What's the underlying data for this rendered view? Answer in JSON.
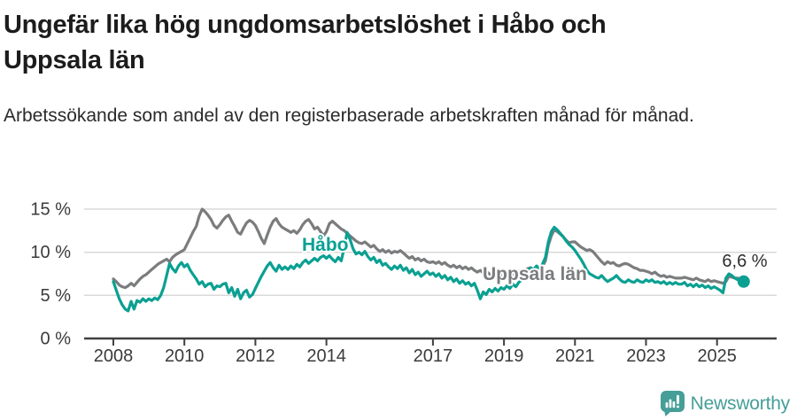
{
  "header": {
    "title": "Ungefär lika hög ungdomsarbetslöshet i Håbo och Uppsala län",
    "subtitle": "Arbetssökande som andel av den registerbaserade arbetskraften månad för månad."
  },
  "chart_data": {
    "type": "line",
    "x_unit": "month",
    "x_start": "2008-01",
    "x_end": "2025-10",
    "x_ticks": [
      2008,
      2010,
      2012,
      2014,
      2017,
      2019,
      2021,
      2023,
      2025
    ],
    "y_ticks": [
      {
        "value": 0,
        "label": "0 %"
      },
      {
        "value": 5,
        "label": "5 %"
      },
      {
        "value": 10,
        "label": "10 %"
      },
      {
        "value": 15,
        "label": "15 %"
      }
    ],
    "ylim": [
      0,
      15.5
    ],
    "grid": "horizontal",
    "legend_position": "inline-labels",
    "annotation": {
      "text": "6,6 %",
      "series": "Håbo",
      "value": 6.6
    },
    "series": [
      {
        "name": "Uppsala län",
        "color": "#7b7c7e",
        "end_dot": false,
        "values": [
          6.9,
          6.6,
          6.2,
          6.0,
          5.9,
          6.1,
          6.4,
          6.1,
          6.5,
          6.9,
          7.2,
          7.4,
          7.7,
          8.0,
          8.3,
          8.6,
          8.8,
          9.0,
          9.2,
          8.9,
          9.4,
          9.7,
          9.9,
          10.1,
          10.3,
          11.0,
          11.7,
          12.4,
          13.0,
          14.2,
          15.0,
          14.7,
          14.3,
          13.8,
          13.1,
          12.8,
          13.2,
          13.7,
          14.1,
          14.3,
          13.6,
          13.0,
          12.3,
          12.1,
          12.8,
          13.4,
          13.7,
          13.5,
          13.1,
          12.4,
          11.6,
          11.0,
          12.0,
          12.9,
          13.6,
          13.9,
          13.3,
          12.9,
          12.7,
          12.5,
          12.3,
          12.5,
          12.2,
          12.6,
          13.2,
          13.6,
          13.8,
          13.3,
          12.7,
          12.9,
          12.4,
          11.9,
          12.4,
          13.3,
          13.6,
          13.3,
          13.0,
          12.7,
          12.5,
          12.2,
          11.9,
          11.6,
          11.3,
          11.1,
          11.0,
          11.2,
          10.9,
          10.6,
          10.8,
          10.4,
          10.1,
          10.3,
          10.0,
          10.2,
          9.9,
          10.1,
          10.0,
          10.2,
          9.9,
          9.6,
          9.3,
          9.5,
          9.1,
          9.3,
          9.0,
          9.2,
          8.9,
          8.8,
          8.9,
          8.7,
          8.9,
          8.6,
          8.8,
          8.5,
          8.3,
          8.5,
          8.2,
          8.4,
          8.1,
          8.3,
          8.0,
          8.2,
          7.9,
          7.7,
          7.9,
          7.6,
          7.8,
          7.5,
          7.3,
          7.5,
          7.2,
          7.4,
          7.3,
          7.5,
          7.2,
          7.4,
          7.6,
          7.8,
          7.7,
          7.9,
          8.1,
          8.2,
          8.0,
          8.2,
          8.1,
          8.3,
          9.0,
          10.8,
          11.9,
          12.6,
          12.4,
          12.1,
          11.8,
          11.4,
          11.1,
          11.2,
          11.2,
          10.9,
          10.6,
          10.4,
          10.2,
          10.3,
          10.1,
          9.7,
          9.3,
          8.9,
          8.6,
          8.9,
          8.7,
          8.8,
          8.5,
          8.4,
          8.6,
          8.7,
          8.6,
          8.4,
          8.2,
          8.1,
          7.9,
          7.9,
          7.8,
          7.7,
          7.5,
          7.7,
          7.4,
          7.2,
          7.3,
          7.1,
          7.2,
          7.1,
          7.0,
          7.0,
          7.0,
          7.1,
          7.0,
          6.9,
          6.8,
          7.0,
          6.8,
          6.7,
          6.6,
          6.8,
          6.6,
          6.7,
          6.6,
          6.5,
          6.4,
          6.6,
          7.2,
          7.1,
          7.0,
          7.0,
          6.9,
          6.9
        ]
      },
      {
        "name": "Håbo",
        "color": "#0aa092",
        "end_dot": true,
        "values": [
          6.6,
          5.6,
          4.6,
          3.9,
          3.4,
          3.2,
          4.3,
          3.4,
          4.4,
          4.2,
          4.6,
          4.3,
          4.6,
          4.4,
          4.7,
          4.5,
          5.0,
          5.9,
          7.3,
          8.7,
          8.1,
          7.7,
          8.4,
          8.8,
          8.3,
          8.6,
          7.9,
          7.4,
          6.9,
          6.3,
          6.6,
          6.0,
          6.3,
          6.4,
          5.7,
          6.1,
          6.0,
          6.3,
          6.4,
          5.3,
          5.9,
          4.9,
          5.7,
          4.6,
          5.3,
          5.6,
          4.8,
          5.1,
          5.8,
          6.5,
          7.2,
          7.8,
          8.4,
          8.8,
          8.2,
          7.8,
          8.5,
          8.0,
          8.3,
          8.0,
          8.4,
          8.1,
          8.6,
          8.3,
          8.8,
          9.1,
          8.7,
          9.0,
          9.3,
          9.0,
          9.4,
          9.6,
          9.3,
          9.6,
          9.2,
          8.9,
          9.4,
          9.0,
          10.5,
          12.3,
          11.5,
          10.4,
          9.8,
          10.0,
          9.7,
          10.1,
          9.5,
          9.1,
          9.4,
          8.8,
          9.1,
          8.5,
          8.7,
          8.3,
          8.0,
          8.4,
          8.1,
          8.5,
          7.9,
          8.2,
          7.6,
          8.0,
          7.4,
          7.7,
          7.2,
          7.5,
          7.8,
          7.4,
          7.6,
          7.2,
          7.5,
          7.0,
          7.3,
          6.8,
          7.1,
          6.6,
          6.9,
          6.4,
          6.7,
          6.3,
          6.5,
          6.1,
          6.4,
          5.6,
          4.6,
          5.4,
          5.1,
          5.7,
          5.4,
          5.8,
          5.5,
          5.9,
          5.7,
          6.1,
          5.8,
          6.3,
          6.0,
          6.5,
          6.8,
          7.2,
          7.8,
          8.2,
          8.0,
          8.4,
          8.1,
          8.6,
          9.4,
          11.2,
          12.4,
          12.9,
          12.6,
          12.2,
          11.8,
          11.3,
          10.9,
          10.6,
          10.2,
          9.7,
          9.2,
          8.6,
          7.9,
          7.5,
          7.3,
          7.1,
          7.0,
          7.3,
          6.9,
          6.6,
          6.8,
          7.0,
          7.3,
          6.9,
          6.6,
          6.5,
          6.8,
          6.6,
          6.5,
          6.8,
          6.6,
          6.5,
          6.8,
          6.6,
          6.8,
          6.5,
          6.6,
          6.4,
          6.6,
          6.3,
          6.5,
          6.3,
          6.5,
          6.3,
          6.3,
          6.5,
          6.1,
          6.3,
          6.0,
          6.3,
          6.0,
          6.2,
          5.9,
          6.1,
          5.8,
          6.0,
          5.8,
          5.6,
          5.3,
          7.0,
          7.5,
          7.3,
          7.0,
          6.8,
          6.7,
          6.6
        ]
      }
    ]
  },
  "footer": {
    "brand": "Newsworthy",
    "brand_color": "#459e98",
    "logo_icon": "newsworthy-bubble-barchart-icon"
  }
}
